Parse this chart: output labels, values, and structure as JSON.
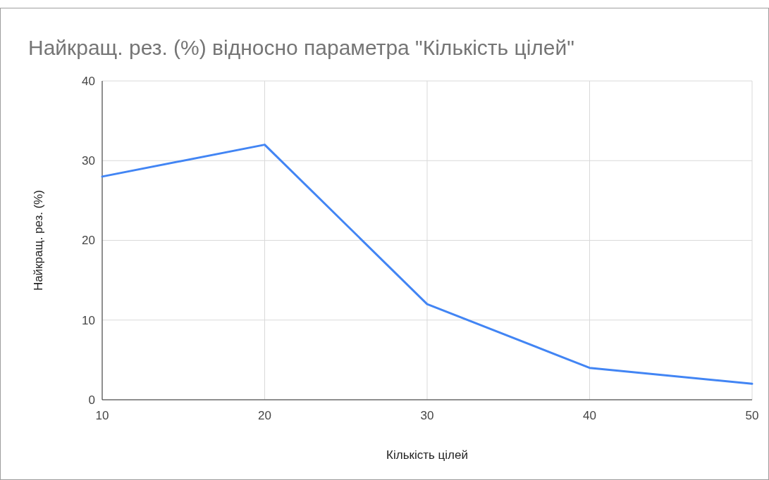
{
  "chart_data": {
    "type": "line",
    "title": "Найкращ. рез. (%) відносно параметра \"Кількість цілей\"",
    "xlabel": "Кількість цілей",
    "ylabel": "Найкращ. рез. (%)",
    "x": [
      10,
      20,
      30,
      40,
      50
    ],
    "series": [
      {
        "color": "#4285f4",
        "values": [
          28,
          32,
          12,
          4,
          2
        ]
      }
    ],
    "xlim": [
      10,
      50
    ],
    "xticks": [
      10,
      20,
      30,
      40,
      50
    ],
    "ylim": [
      0,
      40
    ],
    "yticks": [
      0,
      10,
      20,
      30,
      40
    ],
    "grid": true,
    "marker": "none",
    "line_style": "solid"
  }
}
